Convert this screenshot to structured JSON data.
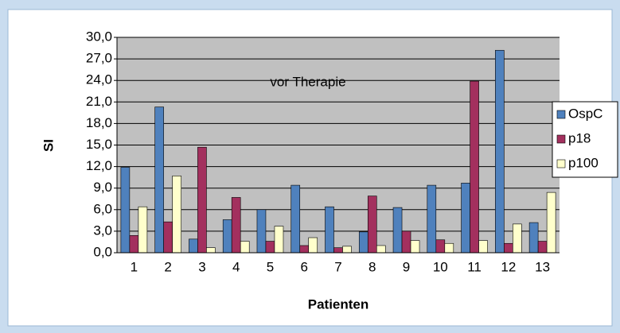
{
  "chart_data": {
    "type": "bar",
    "annotation": "vor Therapie",
    "xlabel": "Patienten",
    "ylabel": "SI",
    "categories": [
      "1",
      "2",
      "3",
      "4",
      "5",
      "6",
      "7",
      "8",
      "9",
      "10",
      "11",
      "12",
      "13"
    ],
    "series": [
      {
        "name": "OspC",
        "color": "#4f81bd",
        "values": [
          11.9,
          20.3,
          1.9,
          4.6,
          6.0,
          9.4,
          6.4,
          2.9,
          6.3,
          9.4,
          9.7,
          28.2,
          4.2
        ]
      },
      {
        "name": "p18",
        "color": "#a3305e",
        "values": [
          2.4,
          4.3,
          14.7,
          7.7,
          1.6,
          1.0,
          0.7,
          7.9,
          3.0,
          1.8,
          23.9,
          1.3,
          1.6
        ]
      },
      {
        "name": "p100",
        "color": "#ffffcc",
        "values": [
          6.4,
          10.7,
          0.7,
          1.6,
          3.7,
          2.1,
          0.9,
          1.0,
          1.7,
          1.3,
          1.7,
          4.0,
          8.4
        ]
      }
    ],
    "ylim": [
      0,
      30
    ],
    "yticks": [
      {
        "value": 0,
        "label": "0,0"
      },
      {
        "value": 3,
        "label": "3,0"
      },
      {
        "value": 6,
        "label": "6,0"
      },
      {
        "value": 9,
        "label": "9,0"
      },
      {
        "value": 12,
        "label": "12,0"
      },
      {
        "value": 15,
        "label": "15,0"
      },
      {
        "value": 18,
        "label": "18,0"
      },
      {
        "value": 21,
        "label": "21,0"
      },
      {
        "value": 24,
        "label": "24,0"
      },
      {
        "value": 27,
        "label": "27,0"
      },
      {
        "value": 30,
        "label": "30,0"
      }
    ],
    "grid": true,
    "legend": "right"
  }
}
